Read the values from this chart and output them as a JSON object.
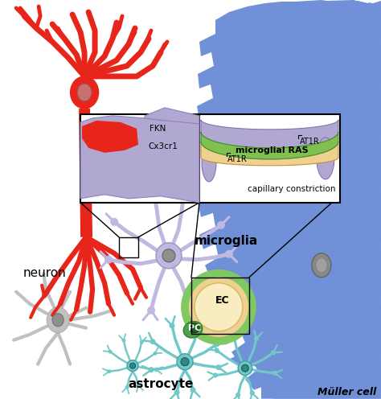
{
  "bg_color": "#ffffff",
  "neuron_color": "#e8251a",
  "muller_color": "#7090d8",
  "muller_soma_color": "#808080",
  "microglia_color": "#c0b8e0",
  "microglia_soma_color": "#909090",
  "astrocyte_color": "#70c8c8",
  "gray_cell_color": "#c0c0c0",
  "gray_cell_soma": "#888888",
  "capillary_ec_color": "#f0d090",
  "capillary_green_color": "#80c860",
  "pericyte_color": "#50a050",
  "box_purple_color": "#b0a8d0",
  "box_green_color": "#80c050",
  "box_tan_color": "#f0d090",
  "arrow_color": "#dd1010",
  "label_neuron": "neuron",
  "label_microglia": "microglia",
  "label_astrocyte": "astrocyte",
  "label_muller": "Müller cell",
  "label_PC": "PC",
  "label_EC": "EC",
  "label_FKN": "FKN",
  "label_Cx3cr1": "Cx3cr1",
  "label_AT1R_left": "AT1R",
  "label_AT1R_right": "AT1R",
  "label_microglial_RAS": "microglial RAS",
  "label_capillary_constriction": "capillary constriction"
}
